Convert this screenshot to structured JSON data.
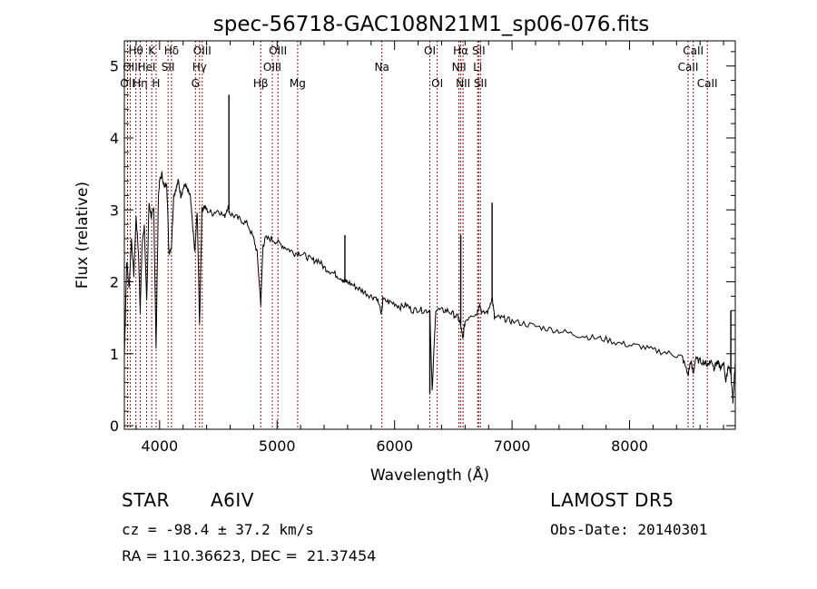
{
  "chart_data": {
    "type": "line",
    "title": "spec-56718-GAC108N21M1_sp06-076.fits",
    "xlabel": "Wavelength (Å)",
    "ylabel": "Flux (relative)",
    "xlim": [
      3700,
      8900
    ],
    "ylim": [
      -0.05,
      5.35
    ],
    "xticks": [
      4000,
      5000,
      6000,
      7000,
      8000
    ],
    "yticks": [
      0,
      1,
      2,
      3,
      4,
      5
    ],
    "grid": false,
    "line_color": "#000000",
    "marker_color": "#8b1a1a",
    "spectrum": {
      "x": [
        3700,
        3720,
        3740,
        3760,
        3780,
        3800,
        3820,
        3835,
        3850,
        3870,
        3890,
        3910,
        3930,
        3950,
        3970,
        3990,
        4000,
        4020,
        4040,
        4060,
        4080,
        4101,
        4120,
        4140,
        4160,
        4180,
        4200,
        4220,
        4240,
        4260,
        4280,
        4300,
        4320,
        4340,
        4360,
        4380,
        4400,
        4450,
        4500,
        4550,
        4580,
        4600,
        4650,
        4700,
        4750,
        4800,
        4830,
        4861,
        4880,
        4900,
        4950,
        5000,
        5050,
        5100,
        5150,
        5200,
        5250,
        5300,
        5350,
        5400,
        5450,
        5500,
        5550,
        5577,
        5600,
        5650,
        5700,
        5750,
        5800,
        5850,
        5890,
        5900,
        5950,
        6000,
        6050,
        6100,
        6150,
        6200,
        6250,
        6300,
        6320,
        6350,
        6400,
        6450,
        6500,
        6540,
        6563,
        6580,
        6600,
        6650,
        6700,
        6720,
        6750,
        6800,
        6830,
        6850,
        6900,
        6950,
        7000,
        7100,
        7200,
        7300,
        7400,
        7500,
        7600,
        7700,
        7800,
        7900,
        8000,
        8100,
        8200,
        8300,
        8400,
        8450,
        8498,
        8520,
        8542,
        8560,
        8600,
        8640,
        8662,
        8680,
        8700,
        8720,
        8740,
        8760,
        8780,
        8800,
        8820,
        8840,
        8860,
        8880,
        8900
      ],
      "y": [
        0.95,
        2.3,
        1.9,
        2.6,
        2.1,
        2.9,
        2.4,
        1.6,
        2.5,
        2.8,
        1.7,
        3.1,
        2.9,
        3.0,
        1.1,
        3.2,
        3.4,
        3.5,
        3.3,
        3.4,
        2.4,
        2.5,
        3.2,
        3.3,
        3.4,
        3.2,
        3.3,
        3.35,
        3.25,
        3.2,
        2.8,
        2.4,
        3.0,
        1.4,
        3.0,
        3.05,
        3.0,
        2.95,
        3.0,
        2.9,
        3.05,
        2.95,
        2.9,
        2.85,
        2.8,
        2.6,
        2.4,
        1.7,
        2.5,
        2.6,
        2.6,
        2.55,
        2.5,
        2.45,
        2.4,
        2.4,
        2.35,
        2.3,
        2.3,
        2.2,
        2.15,
        2.1,
        2.05,
        2.0,
        2.0,
        1.95,
        1.9,
        1.85,
        1.8,
        1.78,
        1.55,
        1.75,
        1.72,
        1.7,
        1.65,
        1.68,
        1.6,
        1.62,
        1.6,
        1.6,
        0.45,
        1.62,
        1.6,
        1.6,
        1.55,
        1.5,
        1.4,
        1.2,
        1.45,
        1.55,
        1.55,
        1.7,
        1.55,
        1.6,
        1.8,
        1.5,
        1.5,
        1.48,
        1.45,
        1.42,
        1.38,
        1.35,
        1.32,
        1.28,
        1.25,
        1.22,
        1.2,
        1.15,
        1.12,
        1.1,
        1.05,
        1.02,
        0.98,
        0.95,
        0.7,
        0.9,
        0.72,
        0.92,
        0.9,
        0.88,
        0.85,
        0.88,
        0.9,
        0.8,
        0.88,
        0.85,
        0.78,
        0.9,
        0.6,
        0.85,
        0.75,
        0.35,
        0.9
      ]
    },
    "spikes": [
      {
        "x": 4590,
        "y": 4.6
      },
      {
        "x": 5577,
        "y": 2.65
      },
      {
        "x": 6300,
        "y": 0.45
      },
      {
        "x": 6563,
        "y": 2.65
      },
      {
        "x": 6830,
        "y": 3.1
      },
      {
        "x": 8862,
        "y": 1.6
      }
    ],
    "lines": [
      {
        "x": 3727,
        "label": "OII",
        "row": 2
      },
      {
        "x": 3750,
        "label": "OII",
        "row": 1
      },
      {
        "x": 3798,
        "label": "Hθ",
        "row": 0
      },
      {
        "x": 3835,
        "label": "Hη",
        "row": 2
      },
      {
        "x": 3889,
        "label": "HeI",
        "row": 1
      },
      {
        "x": 3933,
        "label": "K",
        "row": 0
      },
      {
        "x": 3970,
        "label": "H",
        "row": 2
      },
      {
        "x": 4072,
        "label": "SII",
        "row": 1
      },
      {
        "x": 4101,
        "label": "Hδ",
        "row": 0
      },
      {
        "x": 4305,
        "label": "G",
        "row": 2
      },
      {
        "x": 4340,
        "label": "Hγ",
        "row": 1
      },
      {
        "x": 4363,
        "label": "OIII",
        "row": 0
      },
      {
        "x": 4861,
        "label": "Hβ",
        "row": 2
      },
      {
        "x": 4959,
        "label": "OIII",
        "row": 1
      },
      {
        "x": 5007,
        "label": "OIII",
        "row": 0
      },
      {
        "x": 5175,
        "label": "Mg",
        "row": 2
      },
      {
        "x": 5892,
        "label": "Na",
        "row": 1
      },
      {
        "x": 6300,
        "label": "OI",
        "row": 0
      },
      {
        "x": 6363,
        "label": "OI",
        "row": 2
      },
      {
        "x": 6548,
        "label": "NII",
        "row": 1
      },
      {
        "x": 6563,
        "label": "Hα",
        "row": 0
      },
      {
        "x": 6583,
        "label": "NII",
        "row": 2
      },
      {
        "x": 6707,
        "label": "Li",
        "row": 1
      },
      {
        "x": 6716,
        "label": "SII",
        "row": 0
      },
      {
        "x": 6731,
        "label": "SII",
        "row": 2
      },
      {
        "x": 8498,
        "label": "CaII",
        "row": 1
      },
      {
        "x": 8542,
        "label": "CaII",
        "row": 0
      },
      {
        "x": 8662,
        "label": "CaII",
        "row": 2
      }
    ]
  },
  "info": {
    "class_label": "STAR",
    "subclass": "A6IV",
    "survey": "LAMOST DR5",
    "redshift_line": "cz = -98.4 ± 37.2 km/s",
    "obs_date": "Obs-Date: 20140301",
    "coords": "RA = 110.36623, DEC =  21.37454"
  }
}
